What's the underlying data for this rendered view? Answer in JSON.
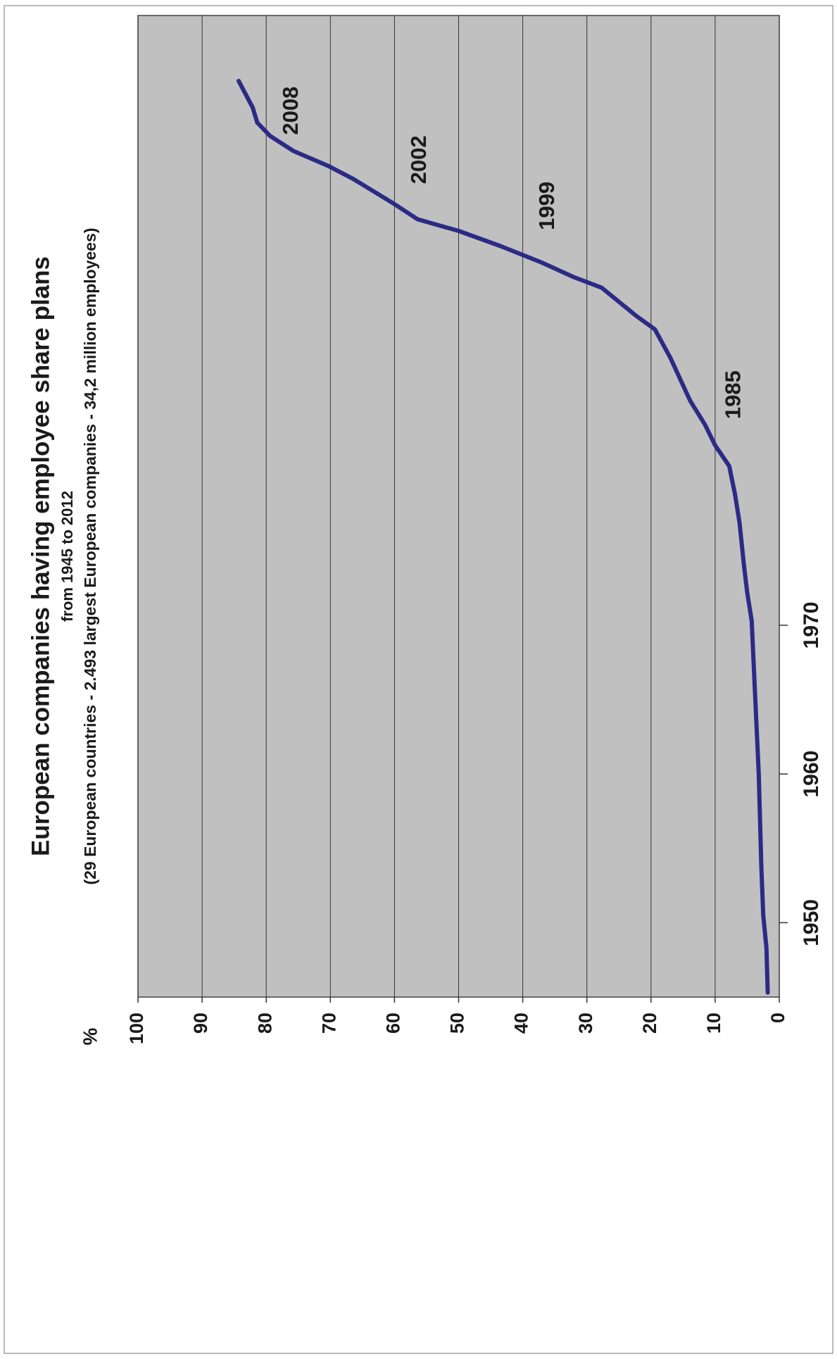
{
  "chart_data": {
    "type": "line",
    "title": "European companies having employee share plans",
    "subtitle": "from 1945 to 2012",
    "subtitle2": "(29 European countries - 2.493 largest European companies - 34,2 million employees)",
    "ylabel": "%",
    "x": [
      1945.3,
      1948.3,
      1950.5,
      1953.8,
      1960,
      1965.6,
      1970.3,
      1972.2,
      1974,
      1976.9,
      1978.8,
      1980.7,
      1982.1,
      1983.5,
      1985.1,
      1988,
      1989.9,
      1990.8,
      1992.7,
      1993.4,
      1994.4,
      1995.5,
      1996.5,
      1997.3,
      1998.4,
      2000,
      2000.9,
      2001.9,
      2002.9,
      2003.8,
      2004.8,
      2005.7,
      2006.6
    ],
    "series": [
      {
        "name": "European companies having employee share plans",
        "color": "#2b2b86",
        "values": [
          1.8,
          2,
          2.5,
          2.8,
          3.2,
          3.8,
          4.3,
          5,
          5.5,
          6.2,
          6.9,
          7.8,
          10,
          11.6,
          13.9,
          17,
          19.4,
          22.3,
          27.7,
          32,
          37.1,
          43.5,
          49.9,
          56.4,
          60.3,
          66.4,
          70.4,
          75.8,
          79.4,
          81.4,
          82.1,
          83.2,
          84.3
        ]
      }
    ],
    "annotations": [
      {
        "text": "1985",
        "x": 1985.5,
        "y": 7
      },
      {
        "text": "1999",
        "x": 1998.2,
        "y": 36
      },
      {
        "text": "2002",
        "x": 2001.3,
        "y": 56
      },
      {
        "text": "2008",
        "x": 2004.6,
        "y": 76
      }
    ],
    "xlim": [
      1945,
      2011
    ],
    "xticks": [
      1950,
      1960,
      1970
    ],
    "ylim": [
      0,
      100
    ],
    "yticks": [
      0,
      10,
      20,
      30,
      40,
      50,
      60,
      70,
      80,
      90,
      100
    ],
    "grid": true
  }
}
